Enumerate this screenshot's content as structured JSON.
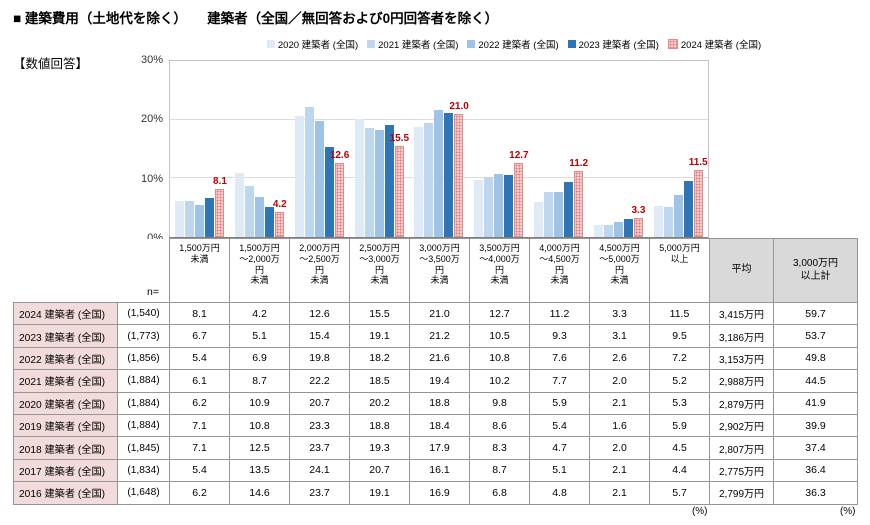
{
  "title": "■ 建築費用（土地代を除く）　　建築者（全国／無回答および0円回答者を除く）",
  "subtitle": "【数値回答】",
  "chart_data": {
    "type": "bar",
    "title": "",
    "xlabel": "",
    "ylabel": "",
    "ylim": [
      0,
      30
    ],
    "grid": true,
    "legend_position": "top",
    "yticks": [
      {
        "v": 30,
        "label": "30%"
      },
      {
        "v": 20,
        "label": "20%"
      },
      {
        "v": 10,
        "label": "10%"
      },
      {
        "v": 0,
        "label": "0%"
      }
    ],
    "categories": [
      "1,500万円未満",
      "1,500万円～2,000万円未満",
      "2,000万円～2,500万円未満",
      "2,500万円～3,000万円未満",
      "3,000万円～3,500万円未満",
      "3,500万円～4,000万円未満",
      "4,000万円～4,500万円未満",
      "4,500万円～5,000万円未満",
      "5,000万円以上"
    ],
    "series": [
      {
        "name": "2020 建築者 (全国)",
        "color": "#DEEBF7",
        "values": [
          6.2,
          10.9,
          20.7,
          20.2,
          18.8,
          9.8,
          5.9,
          2.1,
          5.3
        ]
      },
      {
        "name": "2021 建築者 (全国)",
        "color": "#BDD7EE",
        "values": [
          6.1,
          8.7,
          22.2,
          18.5,
          19.4,
          10.2,
          7.7,
          2.0,
          5.2
        ]
      },
      {
        "name": "2022 建築者 (全国)",
        "color": "#9DC3E6",
        "values": [
          5.4,
          6.9,
          19.8,
          18.2,
          21.6,
          10.8,
          7.6,
          2.6,
          7.2
        ]
      },
      {
        "name": "2023 建築者 (全国)",
        "color": "#2E75B6",
        "values": [
          6.7,
          5.1,
          15.4,
          19.1,
          21.2,
          10.5,
          9.3,
          3.1,
          9.5
        ]
      },
      {
        "name": "2024 建築者 (全国)",
        "color": "#F6CDCD",
        "pattern": true,
        "show_labels": true,
        "label_color": "#C00000",
        "values": [
          8.1,
          4.2,
          12.6,
          15.5,
          21.0,
          12.7,
          11.2,
          3.3,
          11.5
        ]
      }
    ]
  },
  "table": {
    "n_header": "n=",
    "col_headers": [
      "1,500万円\n未満",
      "1,500万円\n～2,000万\n円\n未満",
      "2,000万円\n～2,500万\n円\n未満",
      "2,500万円\n～3,000万\n円\n未満",
      "3,000万円\n～3,500万\n円\n未満",
      "3,500万円\n～4,000万\n円\n未満",
      "4,000万円\n～4,500万\n円\n未満",
      "4,500万円\n～5,000万\n円\n未満",
      "5,000万円\n以上"
    ],
    "avg_header": "平均",
    "total_header": "3,000万円\n以上計",
    "percent_label": "(%)",
    "rows": [
      {
        "label": "2024 建築者 (全国)",
        "n": "(1,540)",
        "values": [
          "8.1",
          "4.2",
          "12.6",
          "15.5",
          "21.0",
          "12.7",
          "11.2",
          "3.3",
          "11.5"
        ],
        "avg": "3,415万円",
        "total": "59.7"
      },
      {
        "label": "2023 建築者 (全国)",
        "n": "(1,773)",
        "values": [
          "6.7",
          "5.1",
          "15.4",
          "19.1",
          "21.2",
          "10.5",
          "9.3",
          "3.1",
          "9.5"
        ],
        "avg": "3,186万円",
        "total": "53.7"
      },
      {
        "label": "2022 建築者 (全国)",
        "n": "(1,856)",
        "values": [
          "5.4",
          "6.9",
          "19.8",
          "18.2",
          "21.6",
          "10.8",
          "7.6",
          "2.6",
          "7.2"
        ],
        "avg": "3,153万円",
        "total": "49.8"
      },
      {
        "label": "2021 建築者 (全国)",
        "n": "(1,884)",
        "values": [
          "6.1",
          "8.7",
          "22.2",
          "18.5",
          "19.4",
          "10.2",
          "7.7",
          "2.0",
          "5.2"
        ],
        "avg": "2,988万円",
        "total": "44.5"
      },
      {
        "label": "2020 建築者 (全国)",
        "n": "(1,884)",
        "values": [
          "6.2",
          "10.9",
          "20.7",
          "20.2",
          "18.8",
          "9.8",
          "5.9",
          "2.1",
          "5.3"
        ],
        "avg": "2,879万円",
        "total": "41.9"
      },
      {
        "label": "2019 建築者 (全国)",
        "n": "(1,884)",
        "values": [
          "7.1",
          "10.8",
          "23.3",
          "18.8",
          "18.4",
          "8.6",
          "5.4",
          "1.6",
          "5.9"
        ],
        "avg": "2,902万円",
        "total": "39.9"
      },
      {
        "label": "2018 建築者 (全国)",
        "n": "(1,845)",
        "values": [
          "7.1",
          "12.5",
          "23.7",
          "19.3",
          "17.9",
          "8.3",
          "4.7",
          "2.0",
          "4.5"
        ],
        "avg": "2,807万円",
        "total": "37.4"
      },
      {
        "label": "2017 建築者 (全国)",
        "n": "(1,834)",
        "values": [
          "5.4",
          "13.5",
          "24.1",
          "20.7",
          "16.1",
          "8.7",
          "5.1",
          "2.1",
          "4.4"
        ],
        "avg": "2,775万円",
        "total": "36.4"
      },
      {
        "label": "2016 建築者 (全国)",
        "n": "(1,648)",
        "values": [
          "6.2",
          "14.6",
          "23.7",
          "19.1",
          "16.9",
          "6.8",
          "4.8",
          "2.1",
          "5.7"
        ],
        "avg": "2,799万円",
        "total": "36.3"
      }
    ]
  }
}
